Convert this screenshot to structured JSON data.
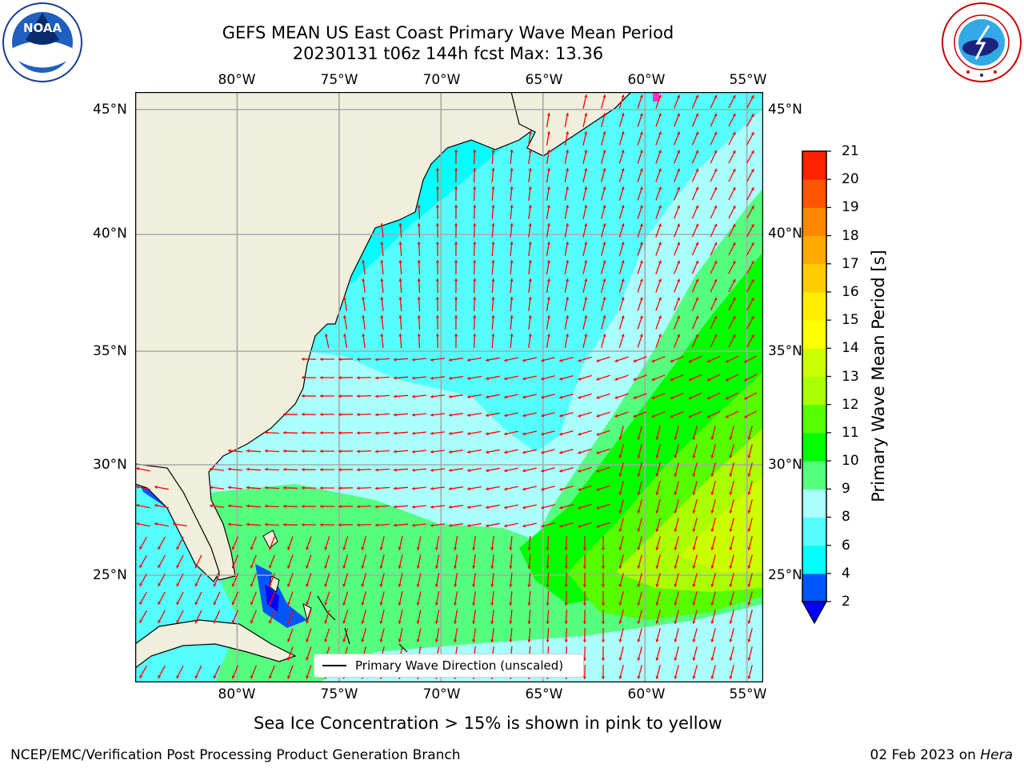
{
  "header": {
    "title_line1": "GEFS MEAN US East Coast Primary Wave Mean Period",
    "title_line2": "20230131 t06z 144h fcst   Max: 13.36"
  },
  "logos": {
    "left": {
      "text": "NOAA",
      "ring_text": "NATIONAL OCEANIC AND ATMOSPHERIC ADMINISTRATION · U.S. DEPARTMENT OF COMMERCE"
    },
    "right": {
      "ring_text": "NATIONAL WEATHER SERVICE"
    }
  },
  "map": {
    "lon_ticks": [
      "80°W",
      "75°W",
      "70°W",
      "65°W",
      "60°W",
      "55°W"
    ],
    "lat_ticks": [
      "45°N",
      "40°N",
      "35°N",
      "30°N",
      "25°N"
    ],
    "lon_range": [
      -85,
      -54.2
    ],
    "lat_range": [
      20.5,
      45.7
    ],
    "legend_label": "Primary Wave Direction (unscaled)",
    "arrow_color": "#ff0000"
  },
  "colorbar": {
    "label": "Primary Wave Mean Period [s]",
    "levels": [
      "2",
      "4",
      "6",
      "8",
      "9",
      "10",
      "11",
      "12",
      "13",
      "14",
      "15",
      "16",
      "17",
      "18",
      "19",
      "20",
      "21"
    ],
    "colors": [
      "#0055ff",
      "#00ffff",
      "#55ffff",
      "#aaffff",
      "#55ff7f",
      "#00ff00",
      "#55ff00",
      "#aaff00",
      "#ccff00",
      "#ffff00",
      "#ffee00",
      "#ffcc00",
      "#ffaa00",
      "#ff8800",
      "#ff5500",
      "#ff2200",
      "#ff0000"
    ],
    "under_color": "#0000ff"
  },
  "notes": {
    "sea_ice": "Sea Ice Concentration > 15% is shown in pink to yellow"
  },
  "footer": {
    "left": "NCEP/EMC/Verification Post Processing Product Generation Branch",
    "right_date": "02 Feb 2023 on ",
    "right_machine": "Hera"
  }
}
